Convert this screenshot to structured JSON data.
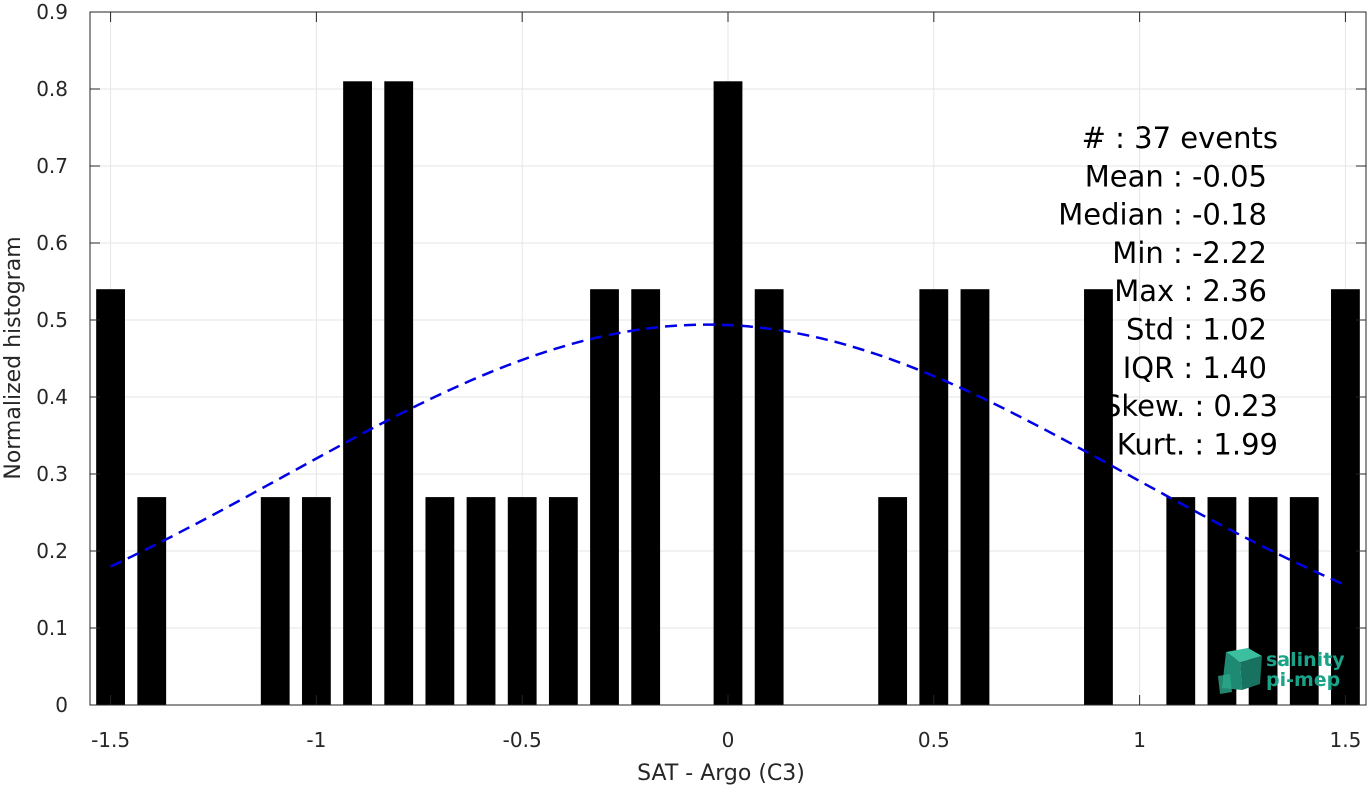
{
  "chart_data": {
    "type": "bar",
    "xlabel": "SAT - Argo (C3)",
    "ylabel": "Normalized histogram",
    "xlim": [
      -1.55,
      1.55
    ],
    "ylim": [
      0,
      0.9
    ],
    "xticks": [
      -1.5,
      -1,
      -0.5,
      0,
      0.5,
      1,
      1.5
    ],
    "xtick_labels": [
      "-1.5",
      "-1",
      "-0.5",
      "0",
      "0.5",
      "1",
      "1.5"
    ],
    "yticks": [
      0,
      0.1,
      0.2,
      0.3,
      0.4,
      0.5,
      0.6,
      0.7,
      0.8,
      0.9
    ],
    "ytick_labels": [
      "0",
      "0.1",
      "0.2",
      "0.3",
      "0.4",
      "0.5",
      "0.6",
      "0.7",
      "0.8",
      "0.9"
    ],
    "grid": true,
    "bar_color": "#000000",
    "bar_width": 0.07,
    "bins": [
      {
        "x": -1.5,
        "value": 0.54
      },
      {
        "x": -1.4,
        "value": 0.27
      },
      {
        "x": -1.1,
        "value": 0.27
      },
      {
        "x": -1.0,
        "value": 0.27
      },
      {
        "x": -0.9,
        "value": 0.81
      },
      {
        "x": -0.8,
        "value": 0.81
      },
      {
        "x": -0.7,
        "value": 0.27
      },
      {
        "x": -0.6,
        "value": 0.27
      },
      {
        "x": -0.5,
        "value": 0.27
      },
      {
        "x": -0.4,
        "value": 0.27
      },
      {
        "x": -0.3,
        "value": 0.54
      },
      {
        "x": -0.2,
        "value": 0.54
      },
      {
        "x": 0.0,
        "value": 0.81
      },
      {
        "x": 0.1,
        "value": 0.54
      },
      {
        "x": 0.4,
        "value": 0.27
      },
      {
        "x": 0.5,
        "value": 0.54
      },
      {
        "x": 0.6,
        "value": 0.54
      },
      {
        "x": 0.9,
        "value": 0.54
      },
      {
        "x": 1.1,
        "value": 0.27
      },
      {
        "x": 1.2,
        "value": 0.27
      },
      {
        "x": 1.3,
        "value": 0.27
      },
      {
        "x": 1.4,
        "value": 0.27
      },
      {
        "x": 1.5,
        "value": 0.54
      }
    ],
    "fit_curve": {
      "type": "gaussian",
      "color": "#0000e6",
      "style": "dashed",
      "mean": -0.05,
      "std": 1.02,
      "peak": 0.494,
      "x_range": [
        -1.5,
        1.5
      ]
    },
    "stats": [
      "#  : 37 events",
      "Mean : -0.05",
      "Median : -0.18",
      "Min : -2.22",
      "Max : 2.36",
      "Std : 1.02",
      "IQR : 1.40",
      "Skew. : 0.23",
      "Kurt. : 1.99"
    ]
  },
  "logo": {
    "line1": "salinity",
    "line2": "pi-mep",
    "color": "#1aa389",
    "icon": "cube-logo-icon"
  }
}
